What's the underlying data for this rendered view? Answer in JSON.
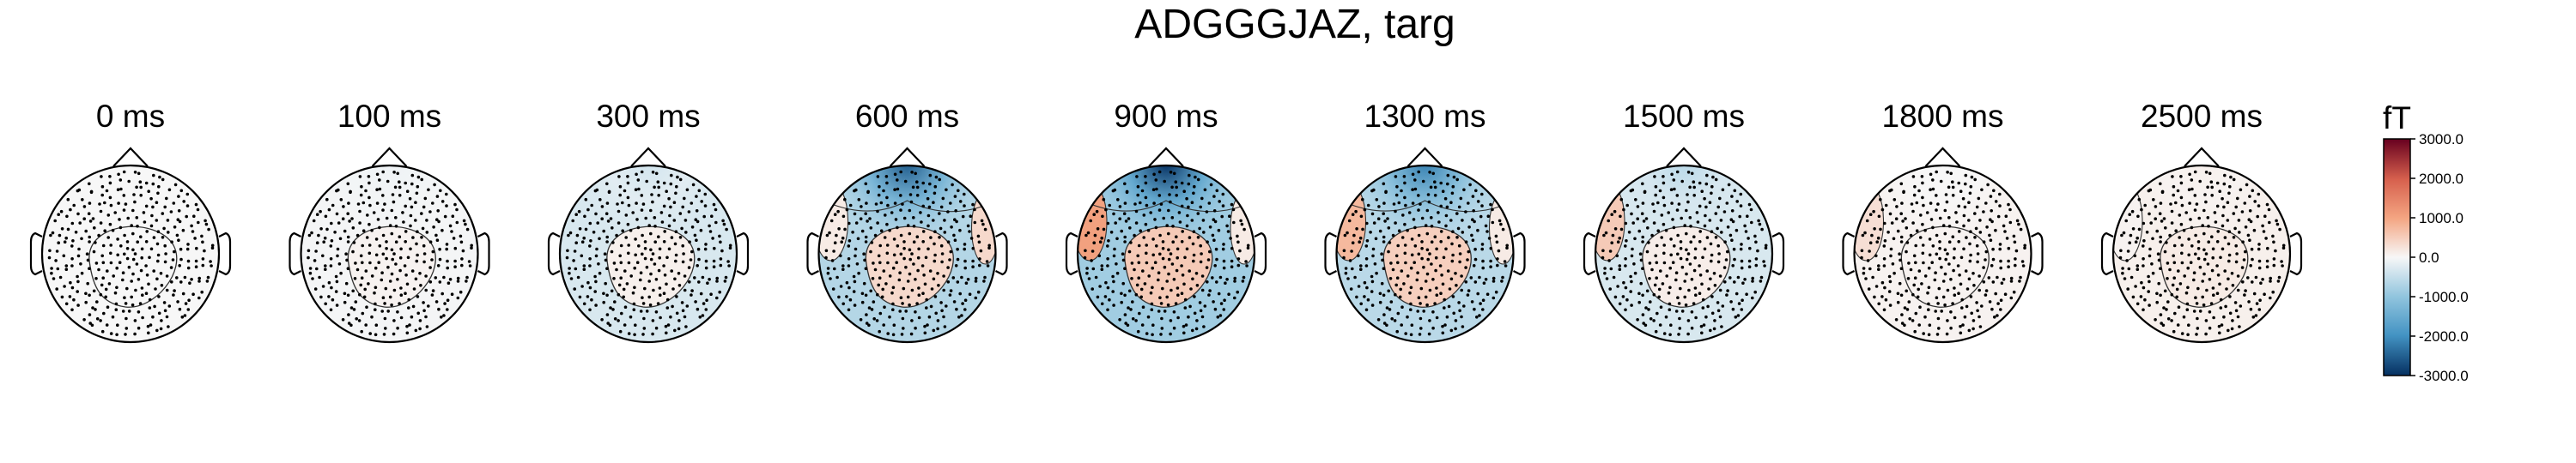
{
  "figure": {
    "title": "ADGGGJAZ, targ"
  },
  "chart_data": {
    "type": "topomap",
    "title": "ADGGGJAZ, targ",
    "panels": [
      {
        "time_label": "0 ms",
        "time_ms": 0,
        "frontal": 0.0,
        "central": 0.0,
        "overall": 0.0,
        "left_temporal": 0.0,
        "right_temporal": 0.0
      },
      {
        "time_label": "100 ms",
        "time_ms": 100,
        "frontal": -0.03,
        "central": 0.02,
        "overall": -0.01,
        "left_temporal": 0.0,
        "right_temporal": 0.0
      },
      {
        "time_label": "300 ms",
        "time_ms": 300,
        "frontal": -0.12,
        "central": 0.03,
        "overall": -0.1,
        "left_temporal": 0.0,
        "right_temporal": 0.0
      },
      {
        "time_label": "600 ms",
        "time_ms": 600,
        "frontal": -0.85,
        "central": 0.12,
        "overall": -0.22,
        "left_temporal": 0.05,
        "right_temporal": 0.12
      },
      {
        "time_label": "900 ms",
        "time_ms": 900,
        "frontal": -1.0,
        "central": 0.18,
        "overall": -0.28,
        "left_temporal": 0.35,
        "right_temporal": 0.05
      },
      {
        "time_label": "1300 ms",
        "time_ms": 1300,
        "frontal": -0.72,
        "central": 0.16,
        "overall": -0.2,
        "left_temporal": 0.25,
        "right_temporal": 0.05
      },
      {
        "time_label": "1500 ms",
        "time_ms": 1500,
        "frontal": -0.2,
        "central": 0.04,
        "overall": -0.1,
        "left_temporal": 0.18,
        "right_temporal": 0.0
      },
      {
        "time_label": "1800 ms",
        "time_ms": 1800,
        "frontal": 0.0,
        "central": 0.02,
        "overall": 0.02,
        "left_temporal": 0.1,
        "right_temporal": 0.0
      },
      {
        "time_label": "2500 ms",
        "time_ms": 2500,
        "frontal": 0.03,
        "central": 0.05,
        "overall": 0.03,
        "left_temporal": 0.02,
        "right_temporal": 0.0
      }
    ],
    "colorbar": {
      "unit": "fT",
      "ticks": [
        "3000.0",
        "2000.0",
        "1000.0",
        "0.0",
        "-1000.0",
        "-2000.0",
        "-3000.0"
      ],
      "tick_values": [
        3000,
        2000,
        1000,
        0,
        -1000,
        -2000,
        -3000
      ],
      "range": [
        -3000,
        3000
      ],
      "colors": {
        "max": "#67001f",
        "positive": "#d6604d",
        "light_positive": "#f4a582",
        "zero": "#f7f7f7",
        "light_negative": "#92c5de",
        "negative": "#4393c3",
        "min": "#053061"
      }
    }
  }
}
